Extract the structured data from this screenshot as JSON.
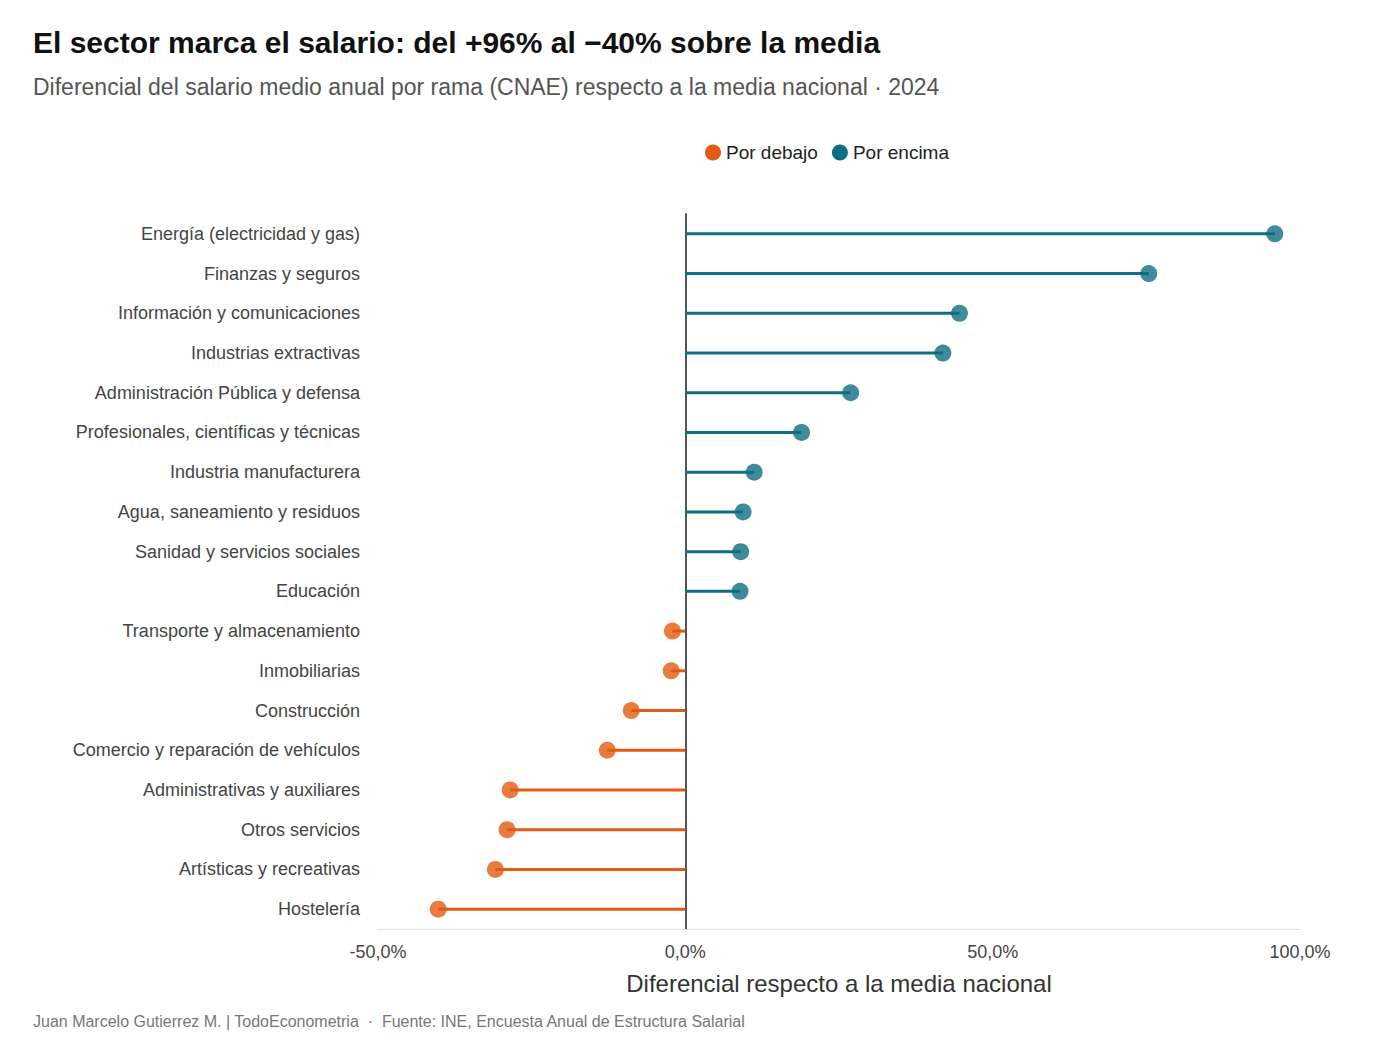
{
  "chart_data": {
    "type": "lollipop",
    "orientation": "horizontal",
    "title": "El sector marca el salario: del +96% al −40% sobre la media",
    "subtitle": "Diferencial del salario medio anual por rama (CNAE) respecto a la media nacional · 2024",
    "x_label": "Diferencial respecto a la media nacional",
    "caption": "Juan Marcelo Gutierrez M. | TodoEconometria  ·  Fuente: INE, Encuesta Anual de Estructura Salarial",
    "categories": [
      "Energía (electricidad y gas)",
      "Finanzas y seguros",
      "Información y comunicaciones",
      "Industrias extractivas",
      "Administración Pública y defensa",
      "Profesionales, científicas y técnicas",
      "Industria manufacturera",
      "Agua, saneamiento y residuos",
      "Sanidad y servicios sociales",
      "Educación",
      "Transporte y almacenamiento",
      "Inmobiliarias",
      "Construcción",
      "Comercio y reparación de vehículos",
      "Administrativas y auxiliares",
      "Otros servicios",
      "Artísticas y recreativas",
      "Hostelería"
    ],
    "series": [
      {
        "name": "Por debajo",
        "color": "#e35a12",
        "marker": "circle",
        "values": [
          null,
          null,
          null,
          null,
          null,
          null,
          null,
          null,
          null,
          null,
          -2.1,
          -2.3,
          -8.8,
          -12.7,
          -28.5,
          -29.0,
          -30.9,
          -40.2
        ]
      },
      {
        "name": "Por encima",
        "color": "#0f6e80",
        "marker": "circle",
        "values": [
          95.9,
          75.4,
          44.6,
          41.9,
          26.9,
          18.9,
          11.2,
          9.4,
          9.0,
          8.9,
          null,
          null,
          null,
          null,
          null,
          null,
          null,
          null
        ]
      }
    ],
    "xlim": [
      -50,
      100
    ],
    "xticks": [
      {
        "value": -50,
        "label": "-50,0%"
      },
      {
        "value": 0,
        "label": "0,0%"
      },
      {
        "value": 50,
        "label": "50,0%"
      },
      {
        "value": 100,
        "label": "100,0%"
      }
    ],
    "grid": false,
    "legend": "top"
  }
}
